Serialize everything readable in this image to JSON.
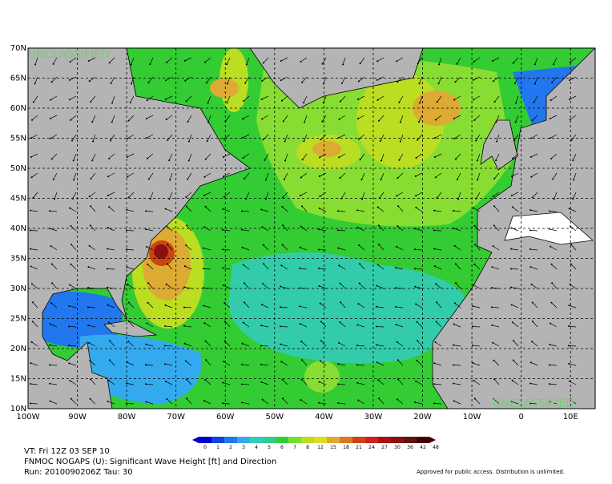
{
  "map": {
    "lat_labels": [
      "70N",
      "65N",
      "60N",
      "55N",
      "50N",
      "45N",
      "40N",
      "35N",
      "30N",
      "25N",
      "20N",
      "15N",
      "10N"
    ],
    "lon_labels": [
      "100W",
      "90W",
      "80W",
      "70W",
      "60W",
      "50W",
      "40W",
      "30W",
      "20W",
      "10W",
      "0",
      "10E"
    ],
    "watermarks": [
      "UNCLASSIFIED",
      "UNCLASSIFIED"
    ]
  },
  "colorbar": {
    "labels": [
      "0",
      "1",
      "2",
      "3",
      "4",
      "5",
      "6",
      "7",
      "8",
      "12",
      "15",
      "18",
      "21",
      "24",
      "27",
      "30",
      "36",
      "42",
      "48"
    ],
    "colors": [
      "#0000cc",
      "#1144dd",
      "#2277ee",
      "#33aaee",
      "#33ccbb",
      "#33cc88",
      "#33cc33",
      "#77dd33",
      "#bbdd22",
      "#dddd22",
      "#ddaa33",
      "#dd7722",
      "#cc4411",
      "#cc2222",
      "#aa1111",
      "#881111",
      "#661111",
      "#440000"
    ]
  },
  "footer": {
    "valid_time": "VT: Fri 12Z 03 SEP 10",
    "product": "FNMOC NOGAPS (U): Significant Wave Height [ft] and Direction",
    "run": "Run: 2010090206Z Tau: 30",
    "release": "Approved for public access. Distribution is unlimited."
  }
}
